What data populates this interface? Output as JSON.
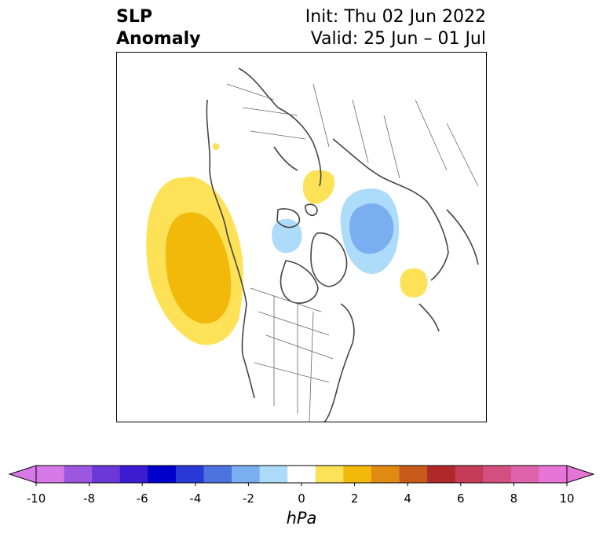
{
  "title": {
    "left_line1": "SLP",
    "left_line2": "Anomaly",
    "right_line1": "Init: Thu 02 Jun 2022",
    "right_line2": "Valid: 25 Jun – 01 Jul"
  },
  "map": {
    "projection": "north-polar stereographic",
    "anomaly_features": [
      {
        "name": "positive anomaly off western North America",
        "min_level": "1 to 2",
        "core": "2 to 3",
        "color": "#f2b80a"
      },
      {
        "name": "positive anomaly over Barents/Kara region",
        "level": "1 to 2",
        "color": "#fde157"
      },
      {
        "name": "negative anomaly over Siberia/Laptev region",
        "level": "-1 to -3",
        "color": "#7aaef0"
      },
      {
        "name": "negative anomaly over Arctic Ocean",
        "level": "-1 to -2",
        "color": "#acdcfa"
      },
      {
        "name": "positive anomaly over eastern Siberia",
        "level": "1 to 2",
        "color": "#fde157"
      }
    ]
  },
  "colorbar": {
    "unit": "hPa",
    "levels": [
      -10,
      -9,
      -8,
      -7,
      -6,
      -5,
      -4,
      -3,
      -2,
      -1,
      1,
      2,
      3,
      4,
      5,
      6,
      7,
      8,
      9,
      10
    ],
    "tick_labels": [
      "-10",
      "-8",
      "-6",
      "-4",
      "-2",
      "0",
      "2",
      "4",
      "6",
      "8",
      "10"
    ],
    "colors": [
      "#d77ae8",
      "#9d56e0",
      "#6b37d6",
      "#3b1cd1",
      "#0000cc",
      "#2a3ad6",
      "#4d73e0",
      "#7aaef0",
      "#acdcfa",
      "#ffffff",
      "#fde157",
      "#f2b80a",
      "#e08a12",
      "#c85a1a",
      "#b0282a",
      "#c43b58",
      "#d45080",
      "#df62ad",
      "#e676d6"
    ],
    "extend_low_color": "#d77ae8",
    "extend_high_color": "#e676d6"
  }
}
